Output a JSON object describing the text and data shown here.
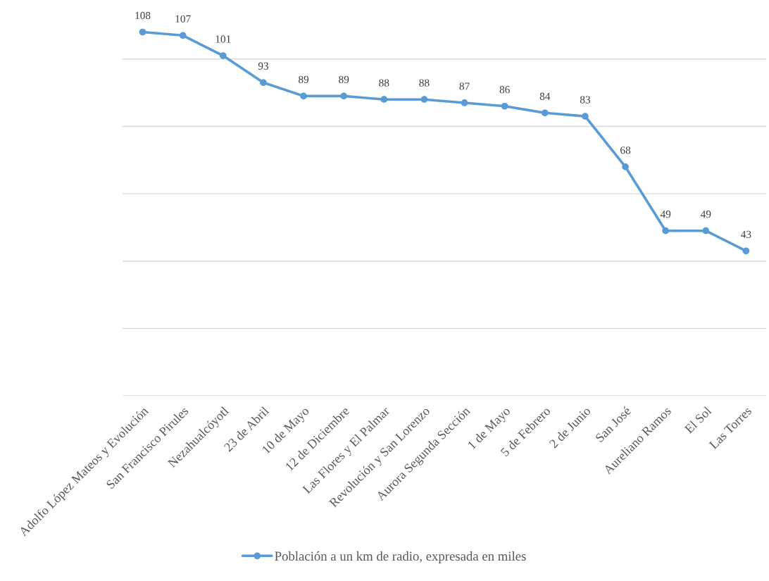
{
  "chart_data": {
    "type": "line",
    "categories": [
      "Adolfo López Mateos y Evolución",
      "San Francisco Pirules",
      "Nezahualcóyotl",
      "23 de Abril",
      "10 de Mayo",
      "12 de Diciembre",
      "Las Flores y El Palmar",
      "Revolución y San Lorenzo",
      "Aurora Segunda Sección",
      "1 de Mayo",
      "5 de Febrero",
      "2 de Junio",
      "San José",
      "Aureliano Ramos",
      "El Sol",
      "Las Torres"
    ],
    "series": [
      {
        "name": "Población a un km de radio, expresada en miles",
        "color": "#5b9bd5",
        "values": [
          108,
          107,
          101,
          93,
          89,
          89,
          88,
          88,
          87,
          86,
          84,
          83,
          68,
          49,
          49,
          43
        ]
      }
    ],
    "yticks": [
      {
        "value": 0,
        "label": null
      },
      {
        "value": 20,
        "label": null
      },
      {
        "value": 40,
        "label": null
      },
      {
        "value": 60,
        "label": null
      },
      {
        "value": 80,
        "label": null
      },
      {
        "value": 100,
        "label": null
      }
    ],
    "grid": "y",
    "legend": "bottom",
    "tick_labels": "x",
    "marker": "circle",
    "line_style": "solid",
    "data_labels": true
  }
}
